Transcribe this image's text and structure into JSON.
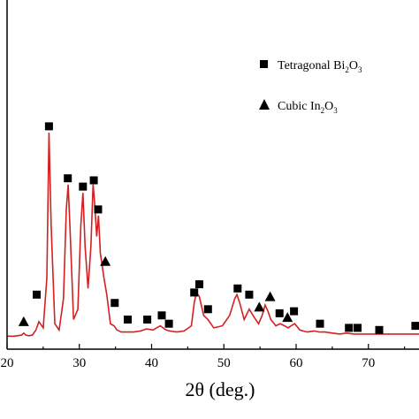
{
  "chart_data": {
    "type": "line",
    "xlabel": "2θ (deg.)",
    "xlim": [
      20,
      77
    ],
    "ylim": [
      0,
      1
    ],
    "x_ticks": [
      "20",
      "30",
      "40",
      "50",
      "60",
      "70"
    ],
    "y_ticks_shown": false,
    "grid": false,
    "line_color": "#d42020",
    "legend_position": "top-right",
    "legend": [
      {
        "marker": "square",
        "text": "Tetragonal Bi",
        "sub1": "2",
        "mid": "O",
        "sub2": "3"
      },
      {
        "marker": "triangle",
        "text": "Cubic In",
        "sub1": "2",
        "mid": "O",
        "sub2": "3"
      }
    ],
    "series": [
      {
        "x": [
          20,
          21,
          22,
          22.3,
          22.6,
          23,
          23.5,
          24.0,
          24.4,
          25.0,
          25.5,
          25.8,
          26.1,
          26.6,
          27.2,
          27.8,
          28.2,
          28.45,
          28.7,
          29.2,
          29.8,
          30.2,
          30.5,
          30.8,
          31.2,
          31.6,
          31.9,
          32.1,
          32.4,
          32.65,
          32.9,
          33.2,
          33.4,
          33.8,
          34.3,
          34.8,
          35.2,
          35.8,
          36.6,
          37.5,
          38.5,
          39.3,
          40.2,
          41.2,
          42,
          42.5,
          43.5,
          44.5,
          45.5,
          45.9,
          46.2,
          46.6,
          47.2,
          47.8,
          48.6,
          49.8,
          50.8,
          51.5,
          51.8,
          52.2,
          52.8,
          53.5,
          54.2,
          54.8,
          55.3,
          55.7,
          56.1,
          56.5,
          57.2,
          57.8,
          58.4,
          58.9,
          59.3,
          59.8,
          60.5,
          61.5,
          62.5,
          63.2,
          64,
          65,
          66,
          67,
          68,
          69,
          70,
          71.5,
          73,
          74,
          75,
          76,
          77
        ],
        "y": [
          0.02,
          0.02,
          0.025,
          0.035,
          0.025,
          0.022,
          0.025,
          0.05,
          0.09,
          0.06,
          0.3,
          1.0,
          0.55,
          0.08,
          0.05,
          0.2,
          0.63,
          0.75,
          0.55,
          0.1,
          0.15,
          0.55,
          0.71,
          0.45,
          0.25,
          0.45,
          0.75,
          0.67,
          0.5,
          0.6,
          0.42,
          0.35,
          0.3,
          0.22,
          0.08,
          0.07,
          0.05,
          0.04,
          0.04,
          0.04,
          0.045,
          0.055,
          0.05,
          0.07,
          0.05,
          0.045,
          0.04,
          0.045,
          0.07,
          0.18,
          0.23,
          0.21,
          0.12,
          0.1,
          0.06,
          0.07,
          0.12,
          0.2,
          0.22,
          0.18,
          0.1,
          0.15,
          0.11,
          0.08,
          0.12,
          0.17,
          0.14,
          0.1,
          0.07,
          0.08,
          0.07,
          0.06,
          0.07,
          0.08,
          0.05,
          0.04,
          0.045,
          0.04,
          0.04,
          0.035,
          0.03,
          0.035,
          0.03,
          0.03,
          0.03,
          0.03,
          0.03,
          0.03,
          0.03,
          0.03,
          0.03
        ]
      }
    ],
    "markers": [
      {
        "type": "triangle",
        "x": 22.3,
        "y": 0.09
      },
      {
        "type": "square",
        "x": 24.1,
        "y": 0.22
      },
      {
        "type": "square",
        "x": 25.8,
        "y": 1.03
      },
      {
        "type": "square",
        "x": 28.4,
        "y": 0.78
      },
      {
        "type": "square",
        "x": 30.5,
        "y": 0.74
      },
      {
        "type": "square",
        "x": 32.0,
        "y": 0.77
      },
      {
        "type": "square",
        "x": 32.6,
        "y": 0.63
      },
      {
        "type": "triangle",
        "x": 33.6,
        "y": 0.38
      },
      {
        "type": "square",
        "x": 34.9,
        "y": 0.18
      },
      {
        "type": "square",
        "x": 36.7,
        "y": 0.1
      },
      {
        "type": "square",
        "x": 39.4,
        "y": 0.1
      },
      {
        "type": "square",
        "x": 41.4,
        "y": 0.12
      },
      {
        "type": "square",
        "x": 42.4,
        "y": 0.08
      },
      {
        "type": "square",
        "x": 45.9,
        "y": 0.23
      },
      {
        "type": "square",
        "x": 46.6,
        "y": 0.27
      },
      {
        "type": "square",
        "x": 47.8,
        "y": 0.15
      },
      {
        "type": "square",
        "x": 51.9,
        "y": 0.25
      },
      {
        "type": "square",
        "x": 53.5,
        "y": 0.22
      },
      {
        "type": "triangle",
        "x": 54.9,
        "y": 0.16
      },
      {
        "type": "triangle",
        "x": 56.4,
        "y": 0.21
      },
      {
        "type": "square",
        "x": 57.7,
        "y": 0.13
      },
      {
        "type": "triangle",
        "x": 58.8,
        "y": 0.11
      },
      {
        "type": "square",
        "x": 59.7,
        "y": 0.14
      },
      {
        "type": "square",
        "x": 63.3,
        "y": 0.08
      },
      {
        "type": "square",
        "x": 67.3,
        "y": 0.06
      },
      {
        "type": "square",
        "x": 68.5,
        "y": 0.06
      },
      {
        "type": "square",
        "x": 71.5,
        "y": 0.05
      },
      {
        "type": "square",
        "x": 76.5,
        "y": 0.07
      }
    ]
  }
}
